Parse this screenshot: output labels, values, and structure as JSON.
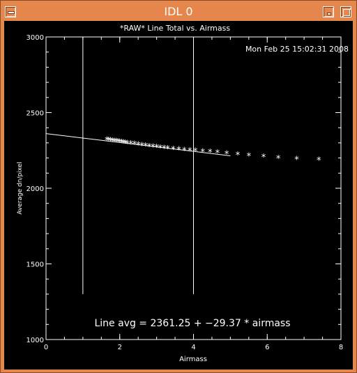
{
  "window": {
    "title": "IDL 0",
    "icons": {
      "menu": "window-menu-icon",
      "minimize": "minimize-icon",
      "maximize": "maximize-icon"
    },
    "colors": {
      "titlebar": "#e5864d",
      "plot_bg": "#000000",
      "ink": "#ffffff"
    }
  },
  "plot": {
    "timestamp": "Mon Feb 25 15:02:31 2008",
    "annotation": "Line avg = 2361.25 + −29.37 * airmass"
  },
  "chart_data": {
    "type": "scatter",
    "title": "*RAW* Line Total vs. Airmass",
    "xlabel": "Airmass",
    "ylabel": "Average dn/pixel",
    "xlim": [
      0,
      8
    ],
    "ylim": [
      1000,
      3000
    ],
    "x_ticks": [
      "0",
      "2",
      "4",
      "6",
      "8"
    ],
    "y_ticks": [
      "1000",
      "1500",
      "2000",
      "2500",
      "3000"
    ],
    "marker": "asterisk",
    "grid": false,
    "points": [
      [
        1.65,
        2320
      ],
      [
        1.7,
        2318
      ],
      [
        1.75,
        2316
      ],
      [
        1.8,
        2314
      ],
      [
        1.85,
        2312
      ],
      [
        1.9,
        2310
      ],
      [
        1.95,
        2308
      ],
      [
        2.0,
        2306
      ],
      [
        2.05,
        2304
      ],
      [
        2.1,
        2302
      ],
      [
        2.15,
        2300
      ],
      [
        2.2,
        2298
      ],
      [
        2.3,
        2295
      ],
      [
        2.4,
        2292
      ],
      [
        2.5,
        2288
      ],
      [
        2.6,
        2284
      ],
      [
        2.7,
        2281
      ],
      [
        2.8,
        2277
      ],
      [
        2.9,
        2274
      ],
      [
        3.0,
        2271
      ],
      [
        3.1,
        2268
      ],
      [
        3.2,
        2266
      ],
      [
        3.3,
        2263
      ],
      [
        3.45,
        2259
      ],
      [
        3.6,
        2256
      ],
      [
        3.75,
        2252
      ],
      [
        3.9,
        2249
      ],
      [
        4.05,
        2246
      ],
      [
        4.25,
        2243
      ],
      [
        4.45,
        2239
      ],
      [
        4.65,
        2234
      ],
      [
        4.9,
        2229
      ],
      [
        5.2,
        2222
      ],
      [
        5.5,
        2215
      ],
      [
        5.9,
        2207
      ],
      [
        6.3,
        2199
      ],
      [
        6.8,
        2192
      ],
      [
        7.4,
        2186
      ]
    ],
    "fit_line": {
      "intercept": 2361.25,
      "slope": -29.37,
      "x_range": [
        0,
        5
      ]
    },
    "vertical_lines": [
      {
        "x": 1.0,
        "y_range": [
          1300,
          3000
        ]
      },
      {
        "x": 4.0,
        "y_range": [
          1300,
          3000
        ]
      }
    ]
  }
}
